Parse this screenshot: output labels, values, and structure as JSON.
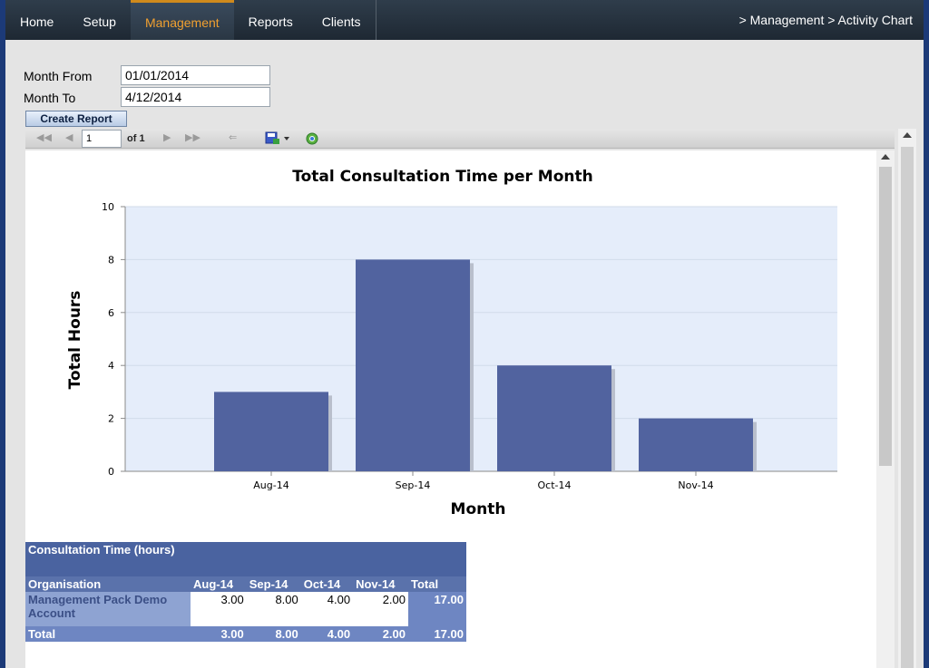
{
  "nav": {
    "tabs": [
      {
        "label": "Home"
      },
      {
        "label": "Setup"
      },
      {
        "label": "Management"
      },
      {
        "label": "Reports"
      },
      {
        "label": "Clients"
      }
    ],
    "active": "Management",
    "breadcrumb": "> Management > Activity Chart"
  },
  "form": {
    "month_from_label": "Month From",
    "month_from_value": "01/01/2014",
    "month_to_label": "Month To",
    "month_to_value": "4/12/2014",
    "create_button": "Create Report"
  },
  "toolbar": {
    "page_value": "1",
    "of_text": "of 1",
    "icons": [
      "first-page-icon",
      "prev-page-icon",
      "next-page-icon",
      "last-page-icon",
      "back-icon",
      "save-icon",
      "refresh-icon"
    ]
  },
  "chart_data": {
    "type": "bar",
    "title": "Total Consultation Time per Month",
    "xlabel": "Month",
    "ylabel": "Total Hours",
    "categories": [
      "Aug-14",
      "Sep-14",
      "Oct-14",
      "Nov-14"
    ],
    "values": [
      3,
      8,
      4,
      2
    ],
    "ylim": [
      0,
      10
    ],
    "yticks": [
      0,
      2,
      4,
      6,
      8,
      10
    ],
    "grid": true,
    "bar_color": "#51639f",
    "plot_bg": "#e5edfa"
  },
  "table": {
    "title": "Consultation Time (hours)",
    "org_header": "Organisation",
    "months": [
      "Aug-14",
      "Sep-14",
      "Oct-14",
      "Nov-14"
    ],
    "total_header": "Total",
    "rows": [
      {
        "org": "Management Pack Demo Account",
        "values": [
          "3.00",
          "8.00",
          "4.00",
          "2.00"
        ],
        "total": "17.00"
      }
    ],
    "total_label": "Total",
    "totals": [
      "3.00",
      "8.00",
      "4.00",
      "2.00"
    ],
    "grand_total": "17.00"
  }
}
